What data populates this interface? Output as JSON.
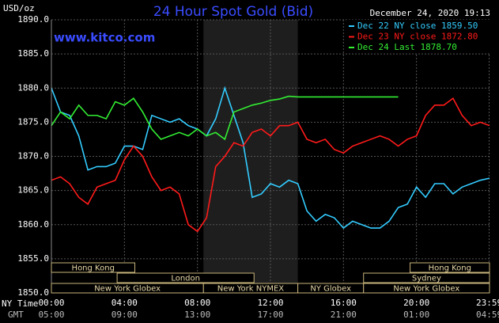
{
  "chart_data": {
    "type": "line",
    "title": "24 Hour Spot Gold (Bid)",
    "brand": "www.kitco.com",
    "timestamp": "December 24, 2020 19:13",
    "ylabel": "USD/oz",
    "xlabel": "NY Time",
    "x2label": "GMT",
    "x": [
      0,
      0.5,
      1,
      1.5,
      2,
      2.5,
      3,
      3.5,
      4,
      4.5,
      5,
      5.5,
      6,
      6.5,
      7,
      7.5,
      8,
      8.5,
      9,
      9.5,
      10,
      10.5,
      11,
      11.5,
      12,
      12.5,
      13,
      13.5,
      14,
      14.5,
      15,
      15.5,
      16,
      16.5,
      17,
      17.5,
      18,
      18.5,
      19,
      19.5,
      20,
      20.5,
      21,
      21.5,
      22,
      22.5,
      23,
      23.5,
      24
    ],
    "xlim": [
      0,
      24
    ],
    "xticks": [
      {
        "value": 0,
        "label": "00:00"
      },
      {
        "value": 4,
        "label": "04:00"
      },
      {
        "value": 8,
        "label": "08:00"
      },
      {
        "value": 12,
        "label": "12:00"
      },
      {
        "value": 16,
        "label": "16:00"
      },
      {
        "value": 20,
        "label": "20:00"
      },
      {
        "value": 23.98,
        "label": "23:59"
      }
    ],
    "x2ticks": [
      {
        "value": 0,
        "label": "05:00"
      },
      {
        "value": 4,
        "label": "09:00"
      },
      {
        "value": 8,
        "label": "13:00"
      },
      {
        "value": 12,
        "label": "17:00"
      },
      {
        "value": 16,
        "label": "21:00"
      },
      {
        "value": 20,
        "label": "01:00"
      },
      {
        "value": 23.98,
        "label": "04:59"
      }
    ],
    "ylim": [
      1850,
      1890
    ],
    "yticks": [
      {
        "value": 1850,
        "label": "1850.0"
      },
      {
        "value": 1855,
        "label": "1855.0"
      },
      {
        "value": 1860,
        "label": "1860.0"
      },
      {
        "value": 1865,
        "label": "1865.0"
      },
      {
        "value": 1870,
        "label": "1870.0"
      },
      {
        "value": 1875,
        "label": "1875.0"
      },
      {
        "value": 1880,
        "label": "1880.0"
      },
      {
        "value": 1885,
        "label": "1885.0"
      },
      {
        "value": 1890,
        "label": "1890.0"
      }
    ],
    "grid": true,
    "highlight": [
      8.33,
      13.5
    ],
    "series": [
      {
        "name": "Dec 22 NY close 1859.50",
        "color": "#33ccff",
        "values": [
          1880,
          1876.5,
          1876,
          1873,
          1868,
          1868.5,
          1868.5,
          1869,
          1871.5,
          1871.5,
          1871,
          1876,
          1875.5,
          1875,
          1875.5,
          1874.5,
          1874,
          1873,
          1875.5,
          1880,
          1876,
          1872,
          1864,
          1864.5,
          1866,
          1865.5,
          1866.5,
          1866,
          1862,
          1860.5,
          1861.5,
          1861,
          1859.5,
          1860.5,
          1860,
          1859.5,
          1859.5,
          1860.5,
          1862.5,
          1863,
          1865.5,
          1864,
          1866,
          1866,
          1864.5,
          1865.5,
          1866,
          1866.5,
          1866.8
        ]
      },
      {
        "name": "Dec 23 NY close 1872.80",
        "color": "#ff1a1a",
        "values": [
          1866.5,
          1867,
          1866,
          1864,
          1863,
          1865.5,
          1866,
          1866.5,
          1869.5,
          1871.5,
          1870,
          1867,
          1865,
          1865.5,
          1864.5,
          1860,
          1859,
          1861,
          1868.5,
          1870,
          1872,
          1871.5,
          1873.5,
          1874,
          1873,
          1874.5,
          1874.5,
          1875,
          1872.5,
          1872,
          1872.5,
          1871,
          1870.5,
          1871.5,
          1872,
          1872.5,
          1873,
          1872.5,
          1871.5,
          1872.5,
          1873,
          1876,
          1877.5,
          1877.5,
          1878.5,
          1876,
          1874.5,
          1875,
          1874.5
        ]
      },
      {
        "name": "Dec 24 Last 1878.70",
        "color": "#33ee33",
        "values": [
          1874.5,
          1876.5,
          1875.5,
          1877.5,
          1876,
          1876,
          1875.5,
          1878,
          1877.5,
          1878.5,
          1876.5,
          1874,
          1872.5,
          1873,
          1873.5,
          1873,
          1874,
          1873,
          1873.5,
          1872.5,
          1876.5,
          1877,
          1877.5,
          1877.8,
          1878.2,
          1878.4,
          1878.8,
          1878.7,
          1878.7,
          1878.7,
          1878.7,
          1878.7,
          1878.7,
          1878.7,
          1878.7,
          1878.7,
          1878.7,
          1878.7,
          1878.7,
          null,
          null,
          null,
          null,
          null,
          null,
          null,
          null,
          null,
          null
        ]
      }
    ],
    "session_rows": [
      [
        {
          "label": "Hong Kong",
          "start": 0,
          "end": 4.57
        },
        {
          "label": "Hong Kong",
          "start": 19.65,
          "end": 24
        }
      ],
      [
        {
          "label": "London",
          "start": 3.6,
          "end": 11.1
        },
        {
          "label": "Sydney",
          "start": 17.1,
          "end": 24
        }
      ],
      [
        {
          "label": "New York Globex",
          "start": 0,
          "end": 8.33
        },
        {
          "label": "New York NYMEX",
          "start": 8.33,
          "end": 13.5
        },
        {
          "label": "NY Globex",
          "start": 13.5,
          "end": 17.1
        },
        {
          "label": "New York Globex",
          "start": 17.1,
          "end": 24
        }
      ]
    ]
  }
}
